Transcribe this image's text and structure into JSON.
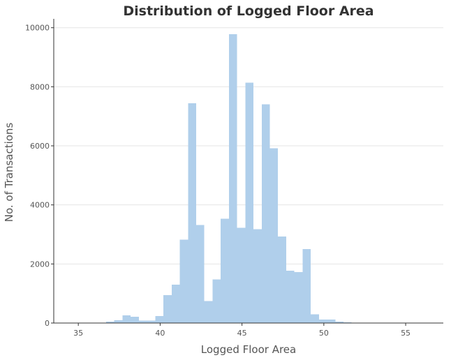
{
  "chart_data": {
    "type": "bar",
    "title": "Distribution of Logged Floor Area",
    "xlabel": "Logged Floor Area",
    "ylabel": "No. of Transactions",
    "xlim": [
      33.5,
      57.3
    ],
    "ylim": [
      0,
      10300
    ],
    "x_ticks": [
      35,
      40,
      45,
      50,
      55
    ],
    "y_ticks": [
      0,
      2000,
      4000,
      6000,
      8000,
      10000
    ],
    "grid": "horizontal",
    "bar_color": "#b0cfeb",
    "bins": [
      {
        "x0": 34.2,
        "x1": 34.7,
        "value": 15
      },
      {
        "x0": 34.7,
        "x1": 35.2,
        "value": 15
      },
      {
        "x0": 35.2,
        "x1": 35.7,
        "value": 0
      },
      {
        "x0": 35.7,
        "x1": 36.2,
        "value": 0
      },
      {
        "x0": 36.2,
        "x1": 36.7,
        "value": 0
      },
      {
        "x0": 36.7,
        "x1": 37.2,
        "value": 45
      },
      {
        "x0": 37.2,
        "x1": 37.7,
        "value": 90
      },
      {
        "x0": 37.7,
        "x1": 38.2,
        "value": 260
      },
      {
        "x0": 38.2,
        "x1": 38.7,
        "value": 210
      },
      {
        "x0": 38.7,
        "x1": 39.2,
        "value": 80
      },
      {
        "x0": 39.2,
        "x1": 39.7,
        "value": 80
      },
      {
        "x0": 39.7,
        "x1": 40.2,
        "value": 240
      },
      {
        "x0": 40.2,
        "x1": 40.7,
        "value": 940
      },
      {
        "x0": 40.7,
        "x1": 41.2,
        "value": 1300
      },
      {
        "x0": 41.2,
        "x1": 41.7,
        "value": 2820
      },
      {
        "x0": 41.7,
        "x1": 42.2,
        "value": 7440
      },
      {
        "x0": 42.2,
        "x1": 42.7,
        "value": 3320
      },
      {
        "x0": 42.7,
        "x1": 43.2,
        "value": 750
      },
      {
        "x0": 43.2,
        "x1": 43.7,
        "value": 1480
      },
      {
        "x0": 43.7,
        "x1": 44.2,
        "value": 3530
      },
      {
        "x0": 44.2,
        "x1": 44.7,
        "value": 9780
      },
      {
        "x0": 44.7,
        "x1": 45.2,
        "value": 3230
      },
      {
        "x0": 45.2,
        "x1": 45.7,
        "value": 8140
      },
      {
        "x0": 45.7,
        "x1": 46.2,
        "value": 3180
      },
      {
        "x0": 46.2,
        "x1": 46.7,
        "value": 7410
      },
      {
        "x0": 46.7,
        "x1": 47.2,
        "value": 5920
      },
      {
        "x0": 47.2,
        "x1": 47.7,
        "value": 2930
      },
      {
        "x0": 47.7,
        "x1": 48.2,
        "value": 1770
      },
      {
        "x0": 48.2,
        "x1": 48.7,
        "value": 1720
      },
      {
        "x0": 48.7,
        "x1": 49.2,
        "value": 2500
      },
      {
        "x0": 49.2,
        "x1": 49.7,
        "value": 290
      },
      {
        "x0": 49.7,
        "x1": 50.2,
        "value": 120
      },
      {
        "x0": 50.2,
        "x1": 50.7,
        "value": 120
      },
      {
        "x0": 50.7,
        "x1": 51.2,
        "value": 50
      },
      {
        "x0": 51.2,
        "x1": 51.7,
        "value": 20
      },
      {
        "x0": 51.7,
        "x1": 52.2,
        "value": 5
      },
      {
        "x0": 52.2,
        "x1": 52.7,
        "value": 5
      }
    ]
  }
}
